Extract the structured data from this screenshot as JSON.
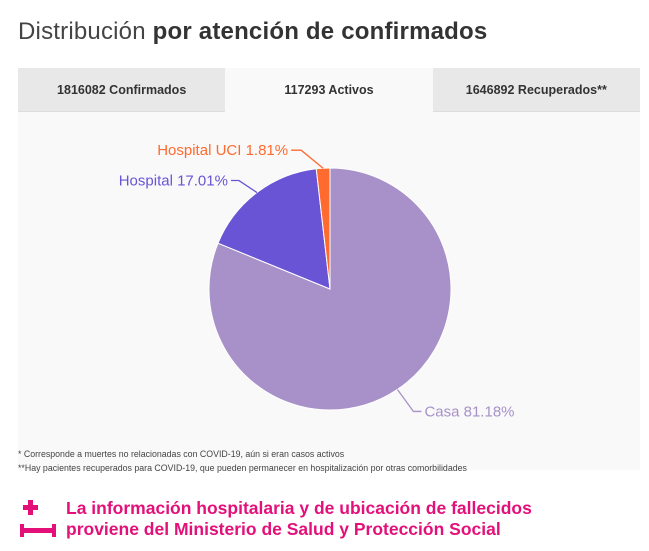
{
  "title": {
    "light": "Distribución",
    "bold": "por atención de confirmados"
  },
  "tabs": [
    {
      "label": "1816082 Confirmados",
      "active": false
    },
    {
      "label": "117293 Activos",
      "active": true
    },
    {
      "label": "1646892 Recuperados**",
      "active": false
    }
  ],
  "chart_data": {
    "type": "pie",
    "slices": [
      {
        "label": "Casa 81.18%",
        "value": 81.18,
        "color": "#a891c8"
      },
      {
        "label": "Hospital 17.01%",
        "value": 17.01,
        "color": "#6a54d6"
      },
      {
        "label": "Hospital UCI 1.81%",
        "value": 1.81,
        "color": "#ff6a2e"
      }
    ]
  },
  "notes": [
    "* Corresponde a muertes no relacionadas con COVID-19, aún si eran casos activos",
    "**Hay pacientes recuperados para COVID-19, que pueden permanecer en hospitalización por otras comorbilidades"
  ],
  "footer": {
    "line1": "La información hospitalaria y de ubicación de fallecidos",
    "line2": "proviene del Ministerio de Salud y Protección Social",
    "icon": "hospital-bed-icon",
    "color": "#e3107a"
  }
}
